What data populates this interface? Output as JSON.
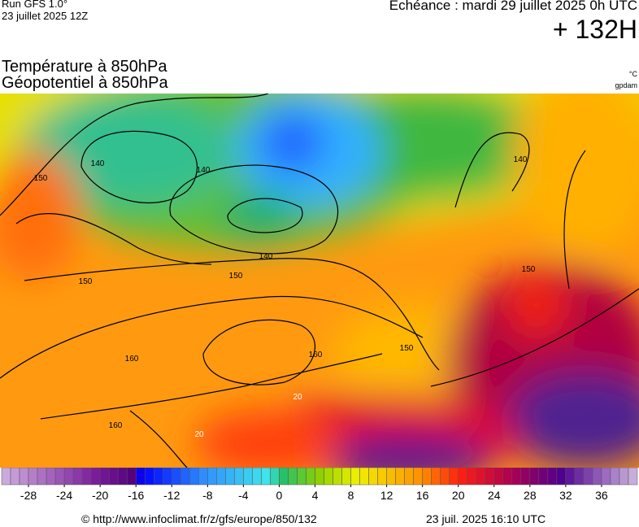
{
  "header": {
    "run": "Run GFS 1.0°",
    "run_date": "23 juillet 2025 12Z",
    "valid": "Echéance : mardi 29 juillet 2025 0h UTC",
    "lead": "+ 132H"
  },
  "titles": {
    "field1": "Température à 850hPa",
    "field2": "Géopotentiel à 850hPa",
    "unit1": "°C",
    "unit2": "gpdam"
  },
  "map": {
    "contour_labels": [
      "140",
      "140",
      "140",
      "140",
      "150",
      "150",
      "150",
      "150",
      "150",
      "160",
      "160",
      "160",
      "20",
      "20"
    ]
  },
  "colorbar": {
    "lim": [
      -31,
      40
    ],
    "ticks": [
      -28,
      -24,
      -20,
      -16,
      -12,
      -8,
      -4,
      0,
      4,
      8,
      12,
      16,
      20,
      24,
      28,
      32,
      36
    ]
  },
  "footer": {
    "source": "© http://www.infoclimat.fr/z/gfs/europe/850/132",
    "generated": "23 juil. 2025 16:10 UTC"
  }
}
